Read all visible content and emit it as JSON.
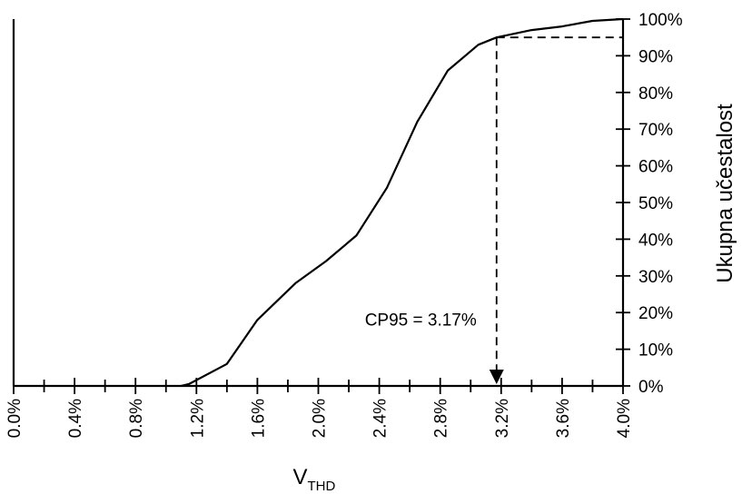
{
  "chart_data": {
    "type": "line",
    "xlabel": "V",
    "xlabel_subscript": "THD",
    "ylabel": "Ukupna učestalost",
    "x_tick_labels": [
      "0.0%",
      "0.4%",
      "0.8%",
      "1.2%",
      "1.6%",
      "2.0%",
      "2.4%",
      "2.8%",
      "3.2%",
      "3.6%",
      "4.0%"
    ],
    "y_tick_labels": [
      "0%",
      "10%",
      "20%",
      "30%",
      "40%",
      "50%",
      "60%",
      "70%",
      "80%",
      "90%",
      "100%"
    ],
    "xlim": [
      0.0,
      4.0
    ],
    "ylim": [
      0,
      100
    ],
    "grid": false,
    "y_axis_side": "right",
    "series": [
      {
        "x": [
          1.1,
          1.15,
          1.4,
          1.6,
          1.85,
          2.05,
          2.25,
          2.45,
          2.65,
          2.85,
          3.05,
          3.17,
          3.4,
          3.6,
          3.8,
          4.0
        ],
        "y": [
          0,
          0.5,
          6,
          18,
          28,
          34,
          41,
          54,
          72,
          86,
          93,
          95,
          97,
          98,
          99.5,
          100
        ]
      }
    ],
    "annotation": {
      "text": "CP95 = 3.17%",
      "x": 3.17,
      "y": 95
    }
  }
}
